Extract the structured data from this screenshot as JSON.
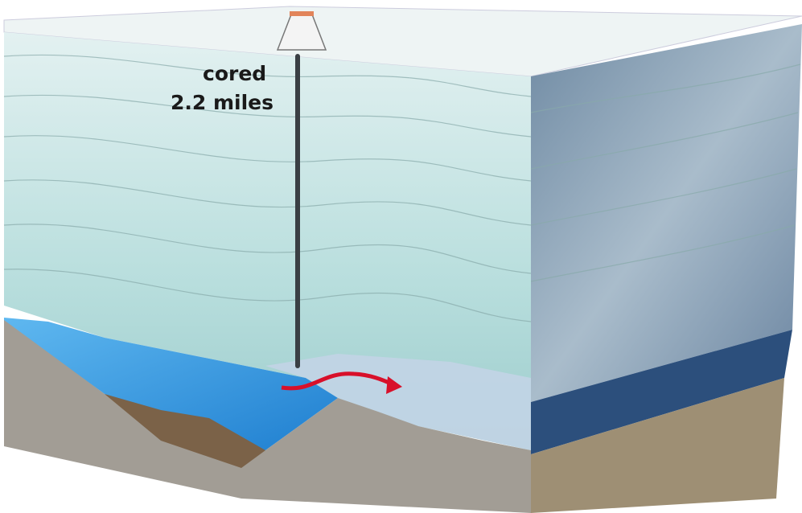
{
  "labels": {
    "line1": "cored",
    "line2": "2.2 miles"
  }
}
